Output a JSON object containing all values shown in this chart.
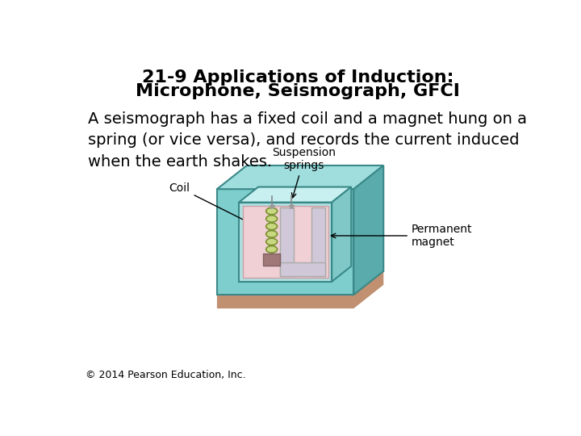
{
  "title_line1": "21-9 Applications of Induction:",
  "title_line2": "Microphone, Seismograph, GFCI",
  "body_text": "A seismograph has a fixed coil and a magnet hung on a\nspring (or vice versa), and records the current induced\nwhen the earth shakes.",
  "copyright": "© 2014 Pearson Education, Inc.",
  "bg_color": "#ffffff",
  "title_fontsize": 16,
  "body_fontsize": 14,
  "copyright_fontsize": 9,
  "label_fontsize": 10,
  "teal_front": "#7ecece",
  "teal_top": "#a0dede",
  "teal_right": "#5aabab",
  "teal_inner_front": "#b0e0e0",
  "teal_inner_top": "#c8f0f0",
  "teal_inner_right": "#80c8c8",
  "pink_bg": "#f0d0d4",
  "magnet_color": "#d0c8d8",
  "spring_color": "#c8d880",
  "spring_edge": "#7a9030",
  "ground_color": "#c09070",
  "edge_color": "#3a8888",
  "brown_box": "#a07878"
}
